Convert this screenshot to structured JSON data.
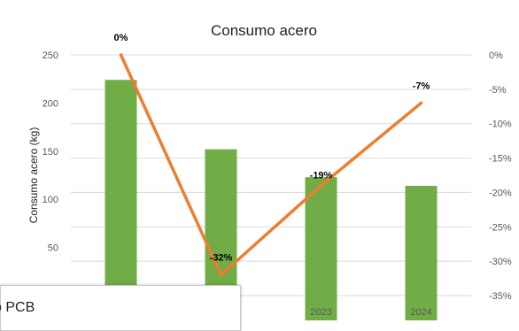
{
  "chart_data": {
    "type": "bar+line",
    "title": "Consumo acero",
    "ylabel": "Consumo acero (kg)",
    "categories": [
      "",
      "",
      "2023",
      "2024"
    ],
    "bars": {
      "values": [
        224,
        152,
        123,
        114
      ],
      "color": "#70ad47",
      "axis": "left"
    },
    "line": {
      "values": [
        0,
        -32,
        -19,
        -7
      ],
      "labels": [
        "0%",
        "-32%",
        "-19%",
        "-7%"
      ],
      "color": "#ed7d31",
      "axis": "right"
    },
    "ylim_left": [
      0,
      250
    ],
    "yticks_left": [
      50,
      100,
      150,
      200,
      250
    ],
    "ylim_right": [
      -35,
      0
    ],
    "yticks_right": [
      0,
      -5,
      -10,
      -15,
      -20,
      -25,
      -30,
      -35
    ],
    "yticklabels_right": [
      "0%",
      "-5%",
      "-10%",
      "-15%",
      "-20%",
      "-25%",
      "-30%",
      "-35%"
    ],
    "grid": true,
    "legend": "none"
  },
  "overlay": {
    "text": "o PCB"
  }
}
